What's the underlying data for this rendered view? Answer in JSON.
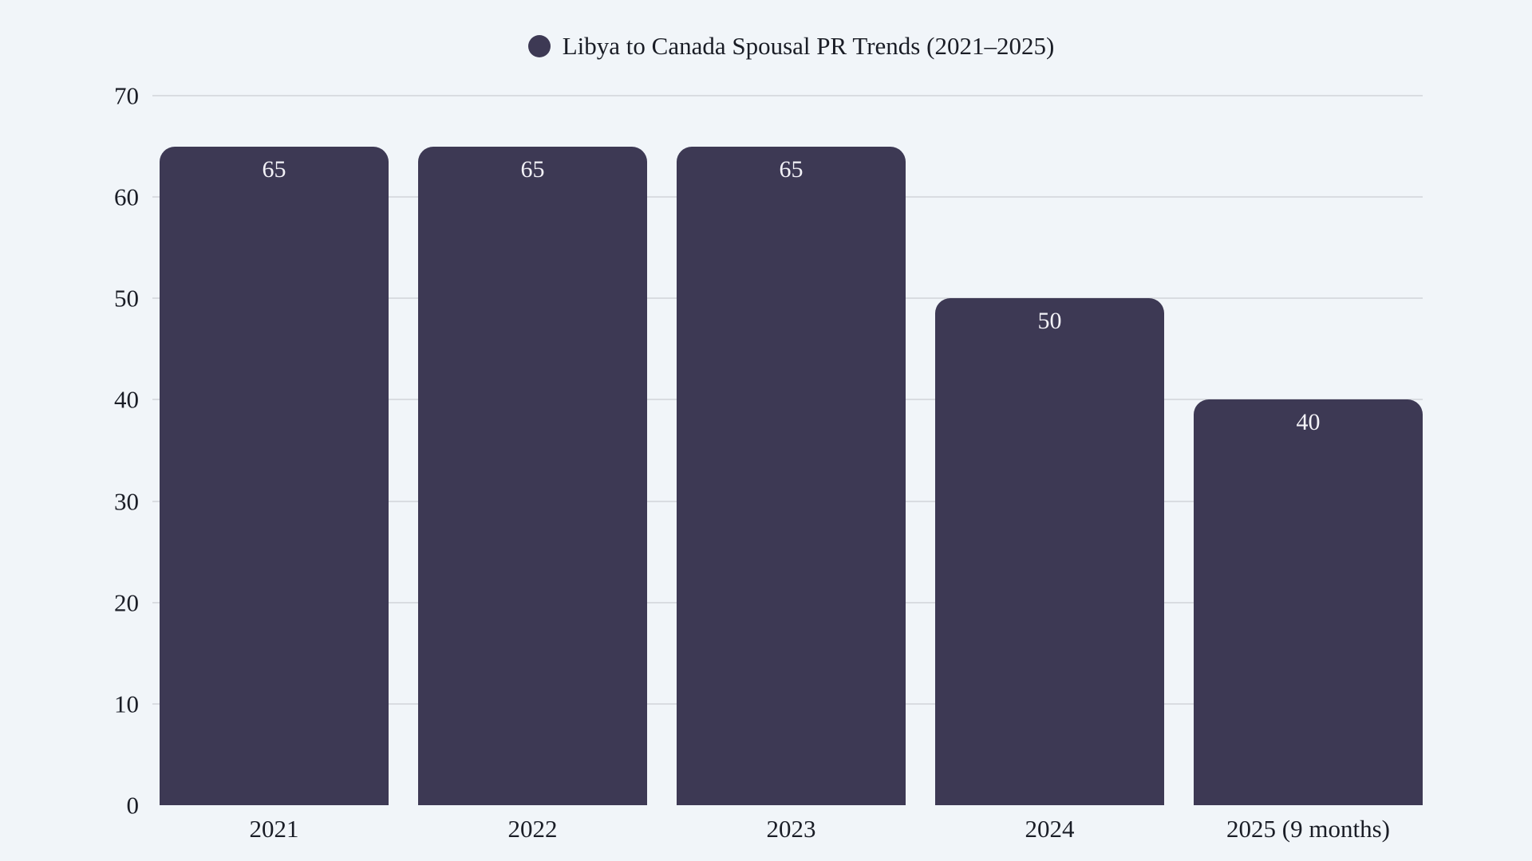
{
  "chart_data": {
    "type": "bar",
    "title": "Libya to Canada Spousal PR Trends (2021–2025)",
    "legend": {
      "label": "Libya to Canada Spousal PR Trends (2021–2025)",
      "position": "top-center",
      "marker": "circle"
    },
    "categories": [
      "2021",
      "2022",
      "2023",
      "2024",
      "2025 (9 months)"
    ],
    "values": [
      65,
      65,
      65,
      50,
      40
    ],
    "value_labels": [
      "65",
      "65",
      "65",
      "50",
      "40"
    ],
    "xlabel": "",
    "ylabel": "",
    "ylim": [
      0,
      70
    ],
    "yticks": [
      0,
      10,
      20,
      30,
      40,
      50,
      60,
      70
    ],
    "grid": true,
    "colors": {
      "bar": "#3d3954",
      "background": "#f1f5f9",
      "gridline": "#d9dce1",
      "axis_text": "#1a1d26",
      "value_label": "#f3f2f7",
      "legend_marker": "#3d3954"
    }
  }
}
